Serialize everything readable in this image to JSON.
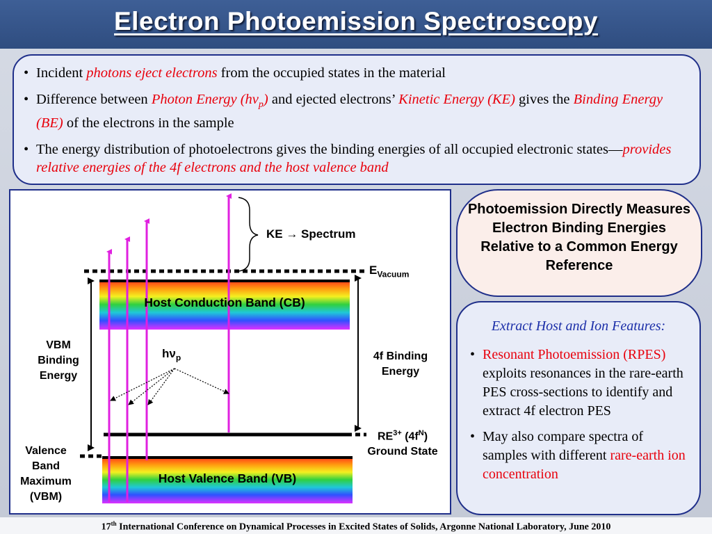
{
  "slide": {
    "title": "Electron Photoemission Spectroscopy",
    "bullets": [
      {
        "parts": [
          {
            "t": "Incident ",
            "s": "plain"
          },
          {
            "t": "photons eject electrons",
            "s": "red-it"
          },
          {
            "t": " from the occupied states in the material",
            "s": "plain"
          }
        ]
      },
      {
        "parts": [
          {
            "t": "Difference between ",
            "s": "plain"
          },
          {
            "t": "Photon Energy (h",
            "s": "red-it"
          },
          {
            "t": "ν",
            "s": "red-it"
          },
          {
            "t": "p",
            "s": "red-it-sub"
          },
          {
            "t": ")",
            "s": "red-it"
          },
          {
            "t": " and ejected electrons’ ",
            "s": "plain"
          },
          {
            "t": "Kinetic Energy (KE)",
            "s": "red-it"
          },
          {
            "t": " gives the ",
            "s": "plain"
          },
          {
            "t": "Binding Energy (BE)",
            "s": "red-it"
          },
          {
            "t": " of the electrons in the sample",
            "s": "plain"
          }
        ]
      },
      {
        "parts": [
          {
            "t": "The energy distribution of photoelectrons gives the binding energies of all occupied electronic states—",
            "s": "plain"
          },
          {
            "t": "provides relative energies of the 4f electrons and the host valence band",
            "s": "red-it"
          }
        ]
      }
    ],
    "footer": {
      "ordinal": "17",
      "sup": "th",
      "rest": " International Conference on Dynamical Processes in Excited States of Solids, Argonne National Laboratory, June 2010"
    }
  },
  "diagram": {
    "ke_label": "KE → Spectrum",
    "e_vacuum": "E",
    "e_vacuum_sub": "Vacuum",
    "cb_label": "Host Conduction Band (CB)",
    "vb_label": "Host Valence Band (VB)",
    "vbm_binding": [
      "VBM",
      "Binding",
      "Energy"
    ],
    "valence_band_max": [
      "Valence",
      "Band",
      "Maximum",
      "(VBM)"
    ],
    "photon": "hν",
    "photon_sub": "p",
    "fbinding": [
      "4f Binding",
      "Energy"
    ],
    "re_label_pre": "RE",
    "re_sup": "3+",
    "re_label_mid": " (4f",
    "re_sup2": "N",
    "re_label_post": ")",
    "ground_state": "Ground State",
    "colors": {
      "arrow": "#e020e0",
      "band_top": "#ff2020",
      "band_bottom": "#ff20ff"
    }
  },
  "callout": {
    "text": "Photoemission Directly Measures Electron Binding Energies Relative to a Common Energy Reference"
  },
  "right_panel": {
    "heading": "Extract Host and Ion Features:",
    "bullets": [
      {
        "parts": [
          {
            "t": "Resonant Photoemission (RPES)",
            "s": "red"
          },
          {
            "t": " exploits resonances in the rare-earth PES cross-sections to identify and extract 4f electron PES",
            "s": "plain"
          }
        ]
      },
      {
        "parts": [
          {
            "t": "May also compare spectra of samples with different ",
            "s": "plain"
          },
          {
            "t": "rare-earth ion concentration",
            "s": "red"
          }
        ]
      }
    ]
  }
}
